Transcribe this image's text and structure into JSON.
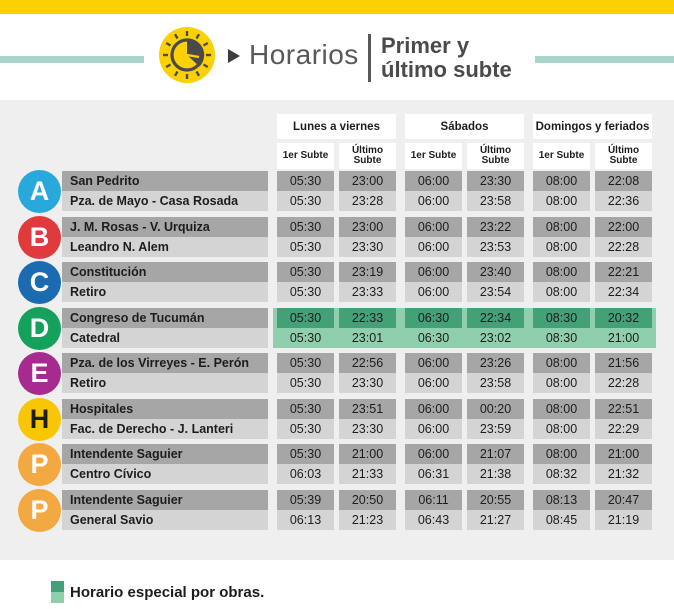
{
  "colors": {
    "yellow": "#fbd103",
    "teal": "#a8d5cc",
    "highlight_dark": "#43a077",
    "highlight_light": "#90cfad"
  },
  "header": {
    "title": "Horarios",
    "subtitle_line1": "Primer y",
    "subtitle_line2": "último subte",
    "clock_icon": "clock-icon",
    "arrow_icon": "play-arrow-icon"
  },
  "table": {
    "day_groups": [
      "Lunes a viernes",
      "Sábados",
      "Domingos y feriados"
    ],
    "sub_headers": {
      "first": "1er Subte",
      "last": "Último Subte"
    },
    "lines": [
      {
        "letter": "A",
        "color": "#29a8dc",
        "letter_color": "#ffffff",
        "highlight": false,
        "stations": [
          {
            "name": "San Pedrito",
            "times": [
              "05:30",
              "23:00",
              "06:00",
              "23:30",
              "08:00",
              "22:08"
            ]
          },
          {
            "name": "Pza. de Mayo - Casa Rosada",
            "times": [
              "05:30",
              "23:28",
              "06:00",
              "23:58",
              "08:00",
              "22:36"
            ]
          }
        ]
      },
      {
        "letter": "B",
        "color": "#e03a3e",
        "letter_color": "#ffffff",
        "highlight": false,
        "stations": [
          {
            "name": "J. M. Rosas - V. Urquiza",
            "times": [
              "05:30",
              "23:00",
              "06:00",
              "23:22",
              "08:00",
              "22:00"
            ]
          },
          {
            "name": "Leandro N. Alem",
            "times": [
              "05:30",
              "23:30",
              "06:00",
              "23:53",
              "08:00",
              "22:28"
            ]
          }
        ]
      },
      {
        "letter": "C",
        "color": "#1b6bb0",
        "letter_color": "#ffffff",
        "highlight": false,
        "stations": [
          {
            "name": "Constitución",
            "times": [
              "05:30",
              "23:19",
              "06:00",
              "23:40",
              "08:00",
              "22:21"
            ]
          },
          {
            "name": "Retiro",
            "times": [
              "05:30",
              "23:33",
              "06:00",
              "23:54",
              "08:00",
              "22:34"
            ]
          }
        ]
      },
      {
        "letter": "D",
        "color": "#13a15c",
        "letter_color": "#ffffff",
        "highlight": true,
        "stations": [
          {
            "name": "Congreso de Tucumán",
            "times": [
              "05:30",
              "22:33",
              "06:30",
              "22:34",
              "08:30",
              "20:32"
            ]
          },
          {
            "name": "Catedral",
            "times": [
              "05:30",
              "23:01",
              "06:30",
              "23:02",
              "08:30",
              "21:00"
            ]
          }
        ]
      },
      {
        "letter": "E",
        "color": "#a62a8f",
        "letter_color": "#ffffff",
        "highlight": false,
        "stations": [
          {
            "name": "Pza. de los Virreyes - E. Perón",
            "times": [
              "05:30",
              "22:56",
              "06:00",
              "23:26",
              "08:00",
              "21:56"
            ]
          },
          {
            "name": "Retiro",
            "times": [
              "05:30",
              "23:30",
              "06:00",
              "23:58",
              "08:00",
              "22:28"
            ]
          }
        ]
      },
      {
        "letter": "H",
        "color": "#f9c606",
        "letter_color": "#1d1d1b",
        "highlight": false,
        "stations": [
          {
            "name": "Hospitales",
            "times": [
              "05:30",
              "23:51",
              "06:00",
              "00:20",
              "08:00",
              "22:51"
            ]
          },
          {
            "name": "Fac. de Derecho - J. Lanteri",
            "times": [
              "05:30",
              "23:30",
              "06:00",
              "23:59",
              "08:00",
              "22:29"
            ]
          }
        ]
      },
      {
        "letter": "P",
        "color": "#f4a842",
        "letter_color": "#ffffff",
        "highlight": false,
        "stations": [
          {
            "name": "Intendente Saguier",
            "times": [
              "05:30",
              "21:00",
              "06:00",
              "21:07",
              "08:00",
              "21:00"
            ]
          },
          {
            "name": "Centro Cívico",
            "times": [
              "06:03",
              "21:33",
              "06:31",
              "21:38",
              "08:32",
              "21:32"
            ]
          }
        ]
      },
      {
        "letter": "P",
        "color": "#f4a842",
        "letter_color": "#ffffff",
        "highlight": false,
        "stations": [
          {
            "name": "Intendente Saguier",
            "times": [
              "05:39",
              "20:50",
              "06:11",
              "20:55",
              "08:13",
              "20:47"
            ]
          },
          {
            "name": "General Savio",
            "times": [
              "06:13",
              "21:23",
              "06:43",
              "21:27",
              "08:45",
              "21:19"
            ]
          }
        ]
      }
    ]
  },
  "legend": {
    "text": "Horario especial por obras."
  }
}
